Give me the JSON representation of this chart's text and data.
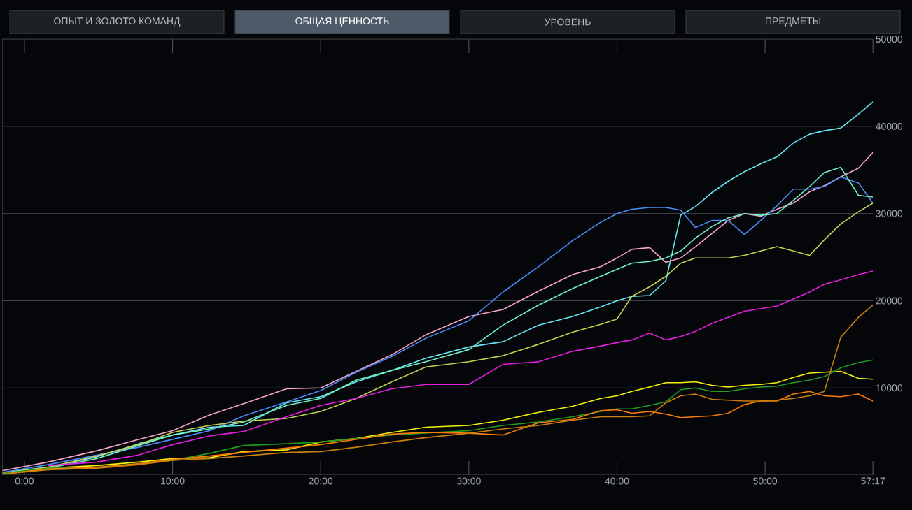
{
  "chart_data": {
    "type": "line",
    "title": "ОБЩАЯ ЦЕННОСТЬ",
    "annotations": [
      "ОПЫТ И ЗОЛОТО КОМАНД",
      "УРОВЕНЬ",
      "ПРЕДМЕТЫ"
    ],
    "x": [
      -1.5,
      1.6,
      4.9,
      7.7,
      10,
      12.5,
      14.8,
      17.7,
      20,
      22.4,
      24.8,
      27.1,
      30,
      32.3,
      34.7,
      37,
      38.9,
      40,
      41,
      42.2,
      43.3,
      44.3,
      45.3,
      46.4,
      47.5,
      48.6,
      49.7,
      50.8,
      51.9,
      53,
      54,
      55.1,
      56.3,
      57.28
    ],
    "series": [
      {
        "color": "#66e6f2",
        "values": [
          300,
          900,
          2100,
          3600,
          4600,
          5500,
          5700,
          8300,
          9000,
          10700,
          12000,
          13400,
          14700,
          15300,
          17200,
          18200,
          19300,
          20000,
          20500,
          20600,
          22300,
          29800,
          30800,
          32400,
          33700,
          34800,
          35700,
          36500,
          38100,
          39100,
          39500,
          39800,
          41400,
          42800
        ]
      },
      {
        "color": "#f7a3c8",
        "values": [
          500,
          1500,
          2800,
          4100,
          5100,
          6900,
          8200,
          9900,
          10000,
          11900,
          13800,
          16100,
          18200,
          19000,
          21100,
          23000,
          23900,
          24900,
          25900,
          26100,
          24400,
          24900,
          26200,
          27700,
          29200,
          30000,
          29700,
          30500,
          31200,
          32500,
          33200,
          34200,
          35200,
          37000
        ]
      },
      {
        "color": "#4a8cf7",
        "values": [
          300,
          1200,
          2300,
          3200,
          4100,
          5100,
          6800,
          8400,
          9700,
          11800,
          13600,
          15700,
          17700,
          21000,
          23900,
          26900,
          29000,
          30000,
          30500,
          30700,
          30700,
          30400,
          28400,
          29200,
          29200,
          27600,
          29200,
          30900,
          32800,
          32800,
          33100,
          34200,
          33500,
          31200
        ]
      },
      {
        "color": "#6ef2c6",
        "values": [
          200,
          800,
          1900,
          3400,
          4600,
          5300,
          6100,
          8000,
          8800,
          10900,
          12000,
          13000,
          14400,
          17200,
          19500,
          21400,
          22800,
          23600,
          24300,
          24500,
          24900,
          25700,
          27200,
          28500,
          29500,
          30000,
          29800,
          30000,
          31500,
          33100,
          34700,
          35300,
          32100,
          31900
        ]
      },
      {
        "color": "#c6cf52",
        "values": [
          200,
          900,
          2200,
          3500,
          4900,
          5700,
          6200,
          6500,
          7300,
          8800,
          10700,
          12400,
          13000,
          13700,
          15000,
          16400,
          17300,
          17900,
          20500,
          21600,
          22800,
          24300,
          24900,
          24900,
          24900,
          25200,
          25700,
          26200,
          25700,
          25200,
          27000,
          28800,
          30200,
          31200
        ]
      },
      {
        "color": "#e21fe0",
        "values": [
          null,
          1100,
          1500,
          2300,
          3500,
          4500,
          5000,
          6700,
          8000,
          8800,
          9900,
          10400,
          10400,
          12700,
          13000,
          14200,
          14800,
          15200,
          15500,
          16300,
          15500,
          15900,
          16500,
          17400,
          18100,
          18800,
          19100,
          19400,
          20200,
          21000,
          21900,
          22400,
          23000,
          23400
        ]
      },
      {
        "color": "#f4f20a",
        "values": [
          200,
          800,
          1100,
          1500,
          1900,
          2000,
          2700,
          2900,
          3800,
          4200,
          4900,
          5500,
          5700,
          6300,
          7200,
          7900,
          8800,
          9100,
          9600,
          10100,
          10600,
          10600,
          10700,
          10300,
          10100,
          10300,
          10400,
          10600,
          11200,
          11700,
          11800,
          11900,
          11100,
          11000
        ]
      },
      {
        "color": "#1f9a22",
        "values": [
          200,
          800,
          900,
          1300,
          1700,
          2500,
          3400,
          3600,
          3800,
          4200,
          4600,
          null,
          5100,
          5700,
          6100,
          6700,
          7300,
          7600,
          7600,
          8000,
          8400,
          9800,
          10000,
          9600,
          9600,
          9900,
          10100,
          10200,
          10600,
          10900,
          11300,
          12300,
          12900,
          13200
        ]
      },
      {
        "color": "#fb7d05",
        "values": [
          100,
          700,
          900,
          1300,
          1800,
          2200,
          2600,
          3100,
          3500,
          4100,
          4700,
          4900,
          4800,
          4600,
          6000,
          6400,
          7400,
          7500,
          7100,
          7300,
          7000,
          6600,
          6700,
          6800,
          7100,
          8100,
          8500,
          8500,
          9300,
          9600,
          9100,
          9000,
          9300,
          8500
        ]
      },
      {
        "color": "#cc7f0a",
        "values": [
          100,
          600,
          800,
          1200,
          1700,
          1900,
          2200,
          2600,
          2700,
          3200,
          3800,
          4300,
          4800,
          5300,
          5700,
          6300,
          6700,
          6700,
          6700,
          6800,
          8300,
          9100,
          9300,
          8700,
          8600,
          8500,
          8500,
          8600,
          8800,
          9100,
          9600,
          15800,
          18100,
          19500
        ]
      }
    ],
    "xlim": [
      -1.5,
      57.28
    ],
    "ylim": [
      0,
      50000
    ],
    "xticks": [
      {
        "value": 0,
        "label": "0:00"
      },
      {
        "value": 10,
        "label": "10:00"
      },
      {
        "value": 20,
        "label": "20:00"
      },
      {
        "value": 30,
        "label": "30:00"
      },
      {
        "value": 40,
        "label": "40:00"
      },
      {
        "value": 50,
        "label": "50:00"
      },
      {
        "value": 57.28,
        "label": "57:17"
      }
    ],
    "yticks": [
      10000,
      20000,
      30000,
      40000,
      50000
    ],
    "grid": "y"
  }
}
